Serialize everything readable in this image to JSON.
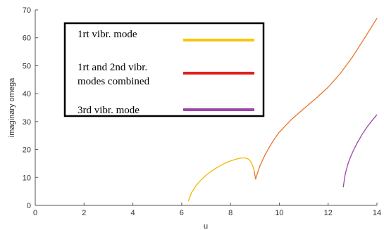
{
  "chart_data": {
    "type": "line",
    "title": "",
    "xlabel": "u",
    "ylabel": "imaginary omega",
    "xlim": [
      0,
      14
    ],
    "ylim": [
      0,
      70
    ],
    "xticks": [
      "0",
      "2",
      "4",
      "6",
      "8",
      "10",
      "12",
      "14"
    ],
    "yticks": [
      "0",
      "10",
      "20",
      "30",
      "40",
      "50",
      "60",
      "70"
    ],
    "grid": false,
    "legend_position": "top-left",
    "series": [
      {
        "name": "1rt vibr. mode",
        "color": "#F2B705",
        "x": [
          6.27,
          6.4,
          6.6,
          6.8,
          7.0,
          7.2,
          7.4,
          7.6,
          7.8,
          8.0,
          8.2,
          8.4,
          8.6,
          8.75,
          8.85,
          8.92,
          8.97
        ],
        "y": [
          1.5,
          4.5,
          7.2,
          9.2,
          10.8,
          12.1,
          13.3,
          14.3,
          15.2,
          15.9,
          16.5,
          16.9,
          17.0,
          16.5,
          15.4,
          13.9,
          12.5
        ]
      },
      {
        "name": "1rt and 2nd vibr. modes combined",
        "color": "#E8752A",
        "x": [
          8.97,
          9.03,
          9.1,
          9.2,
          9.4,
          9.6,
          9.8,
          10.0,
          10.5,
          11.0,
          11.5,
          12.0,
          12.5,
          13.0,
          13.5,
          14.0
        ],
        "y": [
          12.5,
          9.4,
          11.5,
          14.0,
          17.8,
          21.0,
          23.8,
          26.2,
          30.8,
          34.6,
          38.3,
          42.3,
          47.2,
          53.2,
          60.0,
          67.0
        ]
      },
      {
        "name": "3rd vibr. mode",
        "color": "#9B45A8",
        "x": [
          12.62,
          12.66,
          12.7,
          12.8,
          12.9,
          13.0,
          13.2,
          13.4,
          13.6,
          13.8,
          14.0
        ],
        "y": [
          6.5,
          9.0,
          11.2,
          14.5,
          17.0,
          19.0,
          22.5,
          25.5,
          28.1,
          30.4,
          32.5
        ]
      }
    ],
    "legend": [
      {
        "label": "1rt vibr. mode",
        "color": "#F8C70E"
      },
      {
        "label": "1rt and 2nd vibr.",
        "label2": "modes combined",
        "color": "#E02020"
      },
      {
        "label": "3rd vibr. mode",
        "color": "#9B45A8"
      }
    ]
  }
}
